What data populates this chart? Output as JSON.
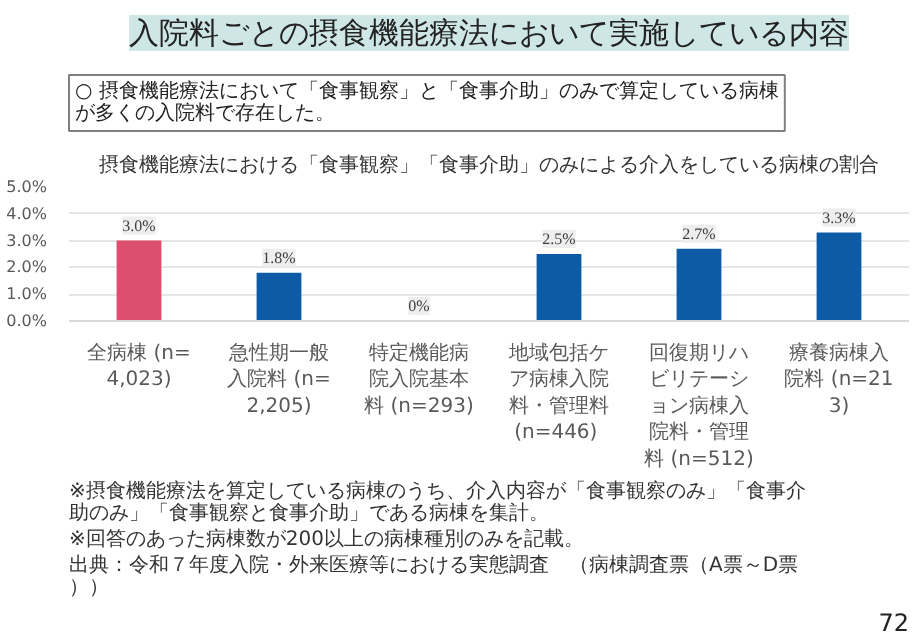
{
  "chart_data": {
    "type": "bar",
    "title": "入院料ごとの摂食機能療法において実施している内容",
    "subtitle": "○ 摂食機能療法において「食事観察」と「食事介助」のみで算定している病棟が多くの入院料で存在した。",
    "annotations": [
      "摂食機能療法における「食事観察」「食事介助」のみによる介入をしている病棟の割合",
      "※摂食機能療法を算定している病棟のうち、介入内容が「食事観察のみ」「食事介助のみ」「食事観察と食事介助」である病棟を集計。",
      "※回答のあった病棟数が200以上の病棟種別のみを記載。",
      "出典：令和７年度入院・外来医療等における実態調査　（病棟調査票（A票～D票））",
      "72"
    ],
    "categories": [
      "全病棟 (n=4,023)",
      "急性期一般入院料 (n=2,205)",
      "特定機能病院入院基本料 (n=293)",
      "地域包括ケア病棟入院料・管理料 (n=446)",
      "回復期リハビリテーション病棟入院料・管理料 (n=512)",
      "療養病棟入院料 (n=213)"
    ],
    "values": [
      3.0,
      1.8,
      0,
      2.5,
      2.7,
      3.3
    ],
    "colors": [
      "#dc4f6e",
      "#0d5aa7",
      "#0d5aa7",
      "#0d5aa7",
      "#0d5aa7",
      "#0d5aa7"
    ],
    "value_labels": [
      "3.0%",
      "1.8%",
      "0%",
      "2.5%",
      "2.7%",
      "3.3%"
    ],
    "ylim": [
      0,
      5
    ],
    "yticks": [
      {
        "value": 0,
        "label": "0.0%"
      },
      {
        "value": 1,
        "label": "1.0%"
      },
      {
        "value": 2,
        "label": "2.0%"
      },
      {
        "value": 3,
        "label": "3.0%"
      },
      {
        "value": 4,
        "label": "4.0%"
      },
      {
        "value": 5,
        "label": "5.0%"
      }
    ],
    "grid": "y"
  }
}
